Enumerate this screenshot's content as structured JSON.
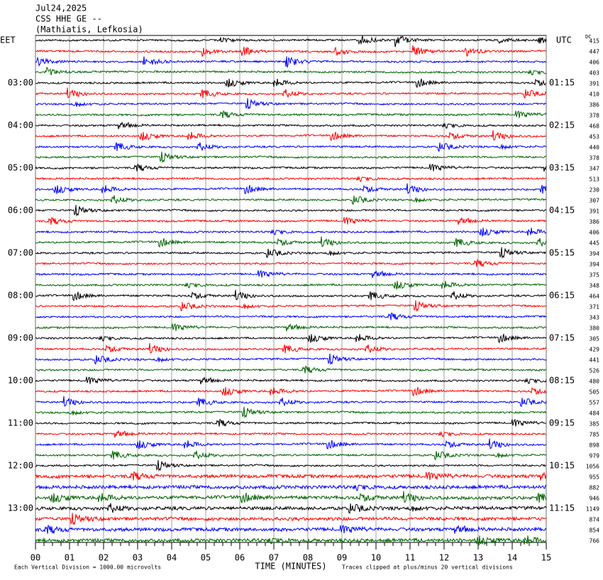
{
  "chart_data": {
    "type": "helicorder",
    "title_lines": [
      "Jul24,2025",
      "CSS HHE GE --",
      "(Mathiatis, Lefkosia)"
    ],
    "left_axis_title": "EET",
    "right_axis_title": "UTC",
    "dc_label": "DC",
    "left_labels": [
      "03:00",
      "04:00",
      "05:00",
      "06:00",
      "07:00",
      "08:00",
      "09:00",
      "10:00",
      "11:00",
      "12:00",
      "13:00"
    ],
    "right_labels": [
      "01:15",
      "02:15",
      "03:15",
      "04:15",
      "05:15",
      "06:15",
      "07:15",
      "08:15",
      "09:15",
      "10:15",
      "11:15"
    ],
    "dc_values": [
      415,
      447,
      406,
      403,
      391,
      410,
      386,
      378,
      468,
      453,
      440,
      378,
      347,
      513,
      230,
      307,
      391,
      386,
      406,
      445,
      394,
      394,
      375,
      348,
      464,
      371,
      343,
      380,
      305,
      429,
      441,
      526,
      480,
      505,
      557,
      484,
      385,
      785,
      898,
      979,
      1056,
      955,
      882,
      946,
      1149,
      874,
      854,
      766
    ],
    "trace_colors": [
      "#000000",
      "#ff0000",
      "#0000ff",
      "#006400"
    ],
    "xlim": [
      0,
      15
    ],
    "xticks": [
      {
        "value": 0,
        "label": "00"
      },
      {
        "value": 1,
        "label": "01"
      },
      {
        "value": 2,
        "label": "02"
      },
      {
        "value": 3,
        "label": "03"
      },
      {
        "value": 4,
        "label": "04"
      },
      {
        "value": 5,
        "label": "05"
      },
      {
        "value": 6,
        "label": "06"
      },
      {
        "value": 7,
        "label": "07"
      },
      {
        "value": 8,
        "label": "08"
      },
      {
        "value": 9,
        "label": "09"
      },
      10,
      11,
      12,
      13,
      14,
      15
    ],
    "xlabel": "TIME (MINUTES)",
    "footnote_left": "Each Vertical Division = 1000.00 microvolts",
    "footnote_right": "Traces clipped at plus/minus 20 vertical divisions"
  }
}
